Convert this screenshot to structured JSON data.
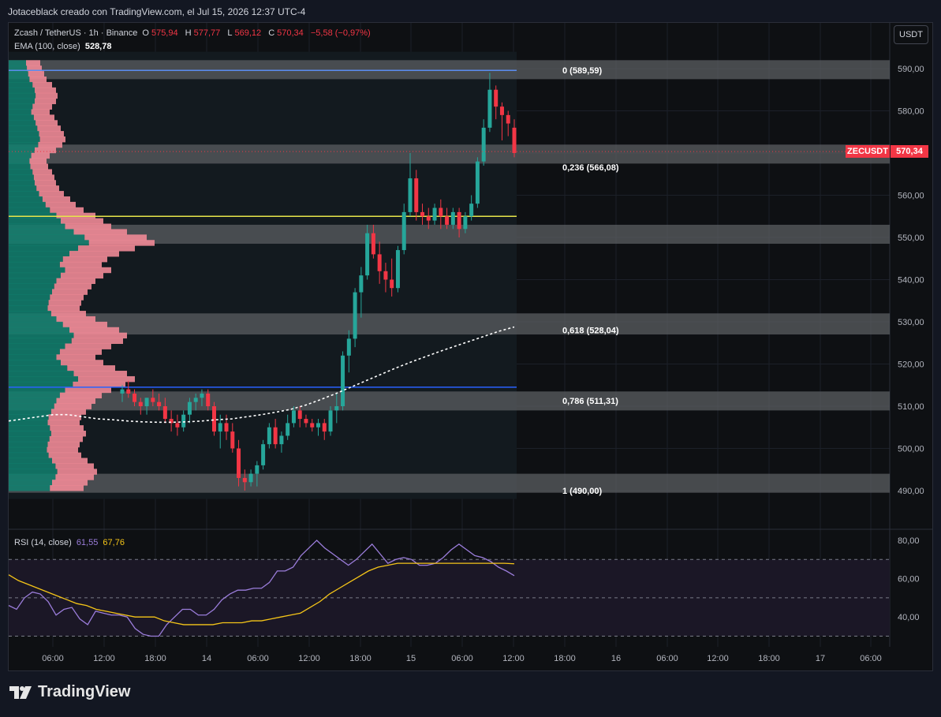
{
  "header": {
    "text": "Jotaceblack creado con TradingView.com, el Jul 15, 2026 12:37 UTC-4"
  },
  "legend": {
    "symbol": "Zcash / TetherUS · 1h · Binance",
    "o_label": "O",
    "o_value": "575,94",
    "h_label": "H",
    "h_value": "577,77",
    "l_label": "L",
    "l_value": "569,12",
    "c_label": "C",
    "c_value": "570,34",
    "change": "−5,58 (−0,97%)",
    "ema_label": "EMA (100, close)",
    "ema_value": "528,78",
    "rsi_label": "RSI (14, close)",
    "rsi_value": "61,55",
    "rsi_ma_value": "67,76"
  },
  "currency_button": "USDT",
  "price_tag": {
    "symbol": "ZECUSDT",
    "value": "570,34"
  },
  "footer": {
    "brand": "TradingView"
  },
  "colors": {
    "up": "#26a69a",
    "down": "#f23645",
    "ema": "#ffffff",
    "rsi": "#9b7ddb",
    "rsi_ma": "#f5c518",
    "fib_top": "#5b8def",
    "fib_mid": "#e8e54a",
    "fib_low": "#2962ff"
  },
  "chart_data": {
    "type": "candlestick",
    "price_axis": {
      "ticks": [
        "590,00",
        "580,00",
        "570,00",
        "560,00",
        "550,00",
        "540,00",
        "530,00",
        "520,00",
        "510,00",
        "500,00",
        "490,00"
      ],
      "ylim": [
        488,
        594
      ]
    },
    "time_axis": [
      "06:00",
      "12:00",
      "18:00",
      "14",
      "06:00",
      "12:00",
      "18:00",
      "15",
      "06:00",
      "12:00",
      "18:00",
      "16",
      "06:00",
      "12:00",
      "18:00",
      "17",
      "06:00"
    ],
    "fib_levels": [
      {
        "ratio": "0",
        "price": 589.59,
        "label": "0 (589,59)"
      },
      {
        "ratio": "0.236",
        "price": 566.08,
        "label": "0,236 (566,08)"
      },
      {
        "ratio": "0.618",
        "price": 528.04,
        "label": "0,618 (528,04)"
      },
      {
        "ratio": "0.786",
        "price": 511.31,
        "label": "0,786 (511,31)"
      },
      {
        "ratio": "1",
        "price": 490.0,
        "label": "1 (490,00)"
      }
    ],
    "horizontal_lines": [
      {
        "price": 589.59,
        "color": "#5b8def"
      },
      {
        "price": 555.0,
        "color": "#e8e54a"
      },
      {
        "price": 514.5,
        "color": "#2962ff"
      }
    ],
    "zones": [
      {
        "from": 587.5,
        "to": 592
      },
      {
        "from": 567.5,
        "to": 572
      },
      {
        "from": 548.5,
        "to": 553
      },
      {
        "from": 527,
        "to": 532
      },
      {
        "from": 509,
        "to": 513.5
      },
      {
        "from": 489.5,
        "to": 494
      }
    ],
    "candles": [
      [
        513,
        515,
        511,
        514
      ],
      [
        514,
        516,
        512,
        513
      ],
      [
        513,
        514,
        510,
        511
      ],
      [
        511,
        512,
        508,
        510
      ],
      [
        510,
        512,
        508,
        512
      ],
      [
        512,
        514,
        510,
        511
      ],
      [
        511,
        513,
        509,
        510
      ],
      [
        510,
        512,
        506,
        507
      ],
      [
        507,
        509,
        504,
        506
      ],
      [
        506,
        508,
        503,
        505
      ],
      [
        505,
        509,
        504,
        508
      ],
      [
        508,
        512,
        506,
        511
      ],
      [
        511,
        513,
        509,
        512
      ],
      [
        512,
        514,
        510,
        513
      ],
      [
        513,
        514,
        509,
        510
      ],
      [
        510,
        511,
        503,
        504
      ],
      [
        504,
        508,
        500,
        506
      ],
      [
        506,
        508,
        502,
        504
      ],
      [
        504,
        506,
        499,
        500
      ],
      [
        500,
        502,
        491,
        493
      ],
      [
        493,
        495,
        490,
        492
      ],
      [
        492,
        495,
        491,
        494
      ],
      [
        494,
        497,
        491,
        496
      ],
      [
        496,
        502,
        495,
        501
      ],
      [
        501,
        506,
        500,
        505
      ],
      [
        505,
        507,
        500,
        501
      ],
      [
        501,
        504,
        499,
        503
      ],
      [
        503,
        508,
        502,
        506
      ],
      [
        506,
        510,
        505,
        509
      ],
      [
        509,
        510,
        505,
        507
      ],
      [
        507,
        508,
        505,
        506
      ],
      [
        506,
        507,
        504,
        505
      ],
      [
        505,
        507,
        503,
        506
      ],
      [
        506,
        507,
        502,
        504
      ],
      [
        504,
        510,
        503,
        509
      ],
      [
        509,
        513,
        506,
        510
      ],
      [
        510,
        523,
        509,
        522
      ],
      [
        522,
        528,
        518,
        526
      ],
      [
        526,
        538,
        524,
        537
      ],
      [
        537,
        543,
        531,
        541
      ],
      [
        541,
        553,
        540,
        551
      ],
      [
        551,
        553,
        545,
        546
      ],
      [
        546,
        549,
        539,
        542
      ],
      [
        542,
        544,
        537,
        540
      ],
      [
        540,
        545,
        536,
        538
      ],
      [
        538,
        548,
        537,
        547
      ],
      [
        547,
        558,
        546,
        556
      ],
      [
        556,
        570,
        555,
        564
      ],
      [
        564,
        566,
        554,
        556
      ],
      [
        556,
        558,
        553,
        555
      ],
      [
        555,
        557,
        552,
        554
      ],
      [
        554,
        558,
        553,
        557
      ],
      [
        557,
        559,
        552,
        555
      ],
      [
        555,
        557,
        552,
        553
      ],
      [
        553,
        557,
        552,
        556
      ],
      [
        556,
        557,
        550,
        552
      ],
      [
        552,
        556,
        551,
        555
      ],
      [
        555,
        560,
        554,
        558
      ],
      [
        558,
        569,
        557,
        568
      ],
      [
        568,
        578,
        567,
        576
      ],
      [
        576,
        589,
        575,
        585
      ],
      [
        585,
        586,
        578,
        581
      ],
      [
        581,
        582,
        573,
        579
      ],
      [
        579,
        580,
        574,
        577
      ],
      [
        576,
        578,
        569,
        570
      ]
    ],
    "ema": [
      506.5,
      507,
      507.5,
      508,
      508,
      507.5,
      507,
      506.8,
      506.5,
      506.3,
      506.2,
      506.2,
      506.3,
      506.5,
      506.8,
      507,
      507.5,
      508,
      508.6,
      509.3,
      510.3,
      511.6,
      513,
      514.5,
      516,
      517.5,
      519,
      520.4,
      521.7,
      523,
      524.2,
      525.4,
      526.6,
      527.8,
      528.78
    ],
    "rsi": [
      46,
      44,
      50,
      53,
      52,
      48,
      41,
      44,
      45,
      39,
      36,
      43,
      42,
      41,
      41,
      40,
      34,
      31,
      30,
      30,
      36,
      40,
      44,
      44,
      41,
      41,
      44,
      49,
      52,
      54,
      54,
      55,
      55,
      58,
      64,
      64,
      66,
      72,
      76,
      80,
      76,
      73,
      70,
      67,
      70,
      74,
      78,
      73,
      68,
      70,
      71,
      70,
      67,
      67,
      68,
      71,
      75,
      78,
      75,
      72,
      71,
      69,
      66,
      64,
      61.55
    ],
    "rsi_ma": [
      62,
      59,
      57,
      55,
      53,
      51,
      49,
      47,
      46,
      44,
      43,
      42,
      41,
      40,
      40,
      40,
      38,
      37,
      36,
      36,
      36,
      36,
      37,
      37,
      37,
      38,
      38,
      39,
      40,
      41,
      42,
      45,
      48,
      52,
      55,
      58,
      61,
      64,
      66,
      67,
      68,
      68,
      68,
      68,
      68,
      68,
      68,
      68,
      68,
      68,
      68,
      68,
      67.76
    ],
    "rsi_axis": {
      "ticks": [
        "80,00",
        "60,00",
        "40,00"
      ],
      "ylim": [
        26,
        84
      ],
      "bands": [
        70,
        50,
        30
      ]
    },
    "volume_profile": [
      40,
      42,
      45,
      48,
      55,
      60,
      62,
      60,
      55,
      52,
      58,
      62,
      66,
      70,
      72,
      68,
      60,
      52,
      48,
      50,
      55,
      58,
      60,
      64,
      70,
      78,
      85,
      95,
      110,
      120,
      130,
      150,
      175,
      185,
      160,
      140,
      125,
      118,
      130,
      120,
      110,
      105,
      100,
      95,
      92,
      90,
      98,
      110,
      125,
      140,
      150,
      145,
      130,
      118,
      110,
      120,
      135,
      150,
      160,
      148,
      130,
      118,
      110,
      105,
      98,
      92,
      90,
      95,
      98,
      94,
      90,
      88,
      92,
      100,
      108,
      112,
      108,
      100,
      95
    ]
  }
}
